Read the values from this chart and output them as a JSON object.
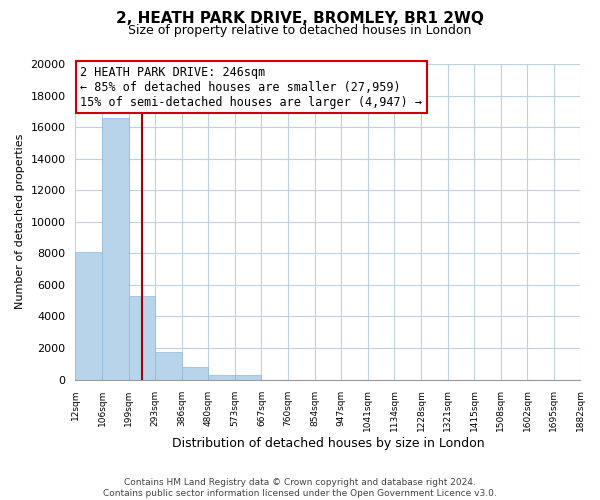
{
  "title": "2, HEATH PARK DRIVE, BROMLEY, BR1 2WQ",
  "subtitle": "Size of property relative to detached houses in London",
  "xlabel": "Distribution of detached houses by size in London",
  "ylabel": "Number of detached properties",
  "bar_values": [
    8100,
    16600,
    5300,
    1750,
    800,
    270,
    270,
    0,
    0,
    0,
    0,
    0,
    0,
    0,
    0,
    0,
    0,
    0,
    0
  ],
  "bin_labels": [
    "12sqm",
    "106sqm",
    "199sqm",
    "293sqm",
    "386sqm",
    "480sqm",
    "573sqm",
    "667sqm",
    "760sqm",
    "854sqm",
    "947sqm",
    "1041sqm",
    "1134sqm",
    "1228sqm",
    "1321sqm",
    "1415sqm",
    "1508sqm",
    "1602sqm",
    "1695sqm",
    "1882sqm"
  ],
  "bar_color": "#b8d4ea",
  "bar_edge_color": "#90b8d8",
  "property_line_color": "#aa0000",
  "ylim": [
    0,
    20000
  ],
  "yticks": [
    0,
    2000,
    4000,
    6000,
    8000,
    10000,
    12000,
    14000,
    16000,
    18000,
    20000
  ],
  "annotation_title": "2 HEATH PARK DRIVE: 246sqm",
  "annotation_line1": "← 85% of detached houses are smaller (27,959)",
  "annotation_line2": "15% of semi-detached houses are larger (4,947) →",
  "annotation_box_color": "#ffffff",
  "annotation_box_edge": "#cc0000",
  "footer_line1": "Contains HM Land Registry data © Crown copyright and database right 2024.",
  "footer_line2": "Contains public sector information licensed under the Open Government Licence v3.0.",
  "background_color": "#ffffff",
  "grid_color": "#c0d0e0"
}
